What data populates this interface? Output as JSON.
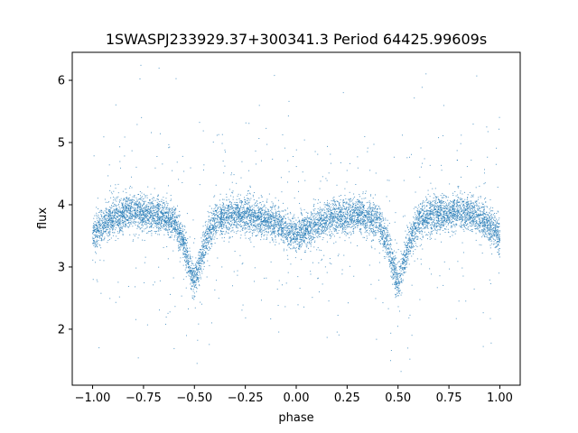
{
  "chart_data": {
    "type": "scatter",
    "title": "1SWASPJ233929.37+300341.3 Period 64425.99609s",
    "xlabel": "phase",
    "ylabel": "flux",
    "xlim": [
      -1.1,
      1.1
    ],
    "ylim": [
      1.1,
      6.45
    ],
    "xticks": [
      -1.0,
      -0.75,
      -0.5,
      -0.25,
      0.0,
      0.25,
      0.5,
      0.75,
      1.0
    ],
    "xtick_labels": [
      "−1.00",
      "−0.75",
      "−0.50",
      "−0.25",
      "0.00",
      "0.25",
      "0.50",
      "0.75",
      "1.00"
    ],
    "yticks": [
      2,
      3,
      4,
      5,
      6
    ],
    "ytick_labels": [
      "2",
      "3",
      "4",
      "5",
      "6"
    ],
    "grid": false,
    "legend": "none",
    "marker_color": "#1f77b4",
    "curve": {
      "phase": [
        -1.0,
        -0.9,
        -0.8,
        -0.7,
        -0.6,
        -0.55,
        -0.52,
        -0.5,
        -0.48,
        -0.45,
        -0.4,
        -0.3,
        -0.2,
        -0.1,
        -0.05,
        0.0,
        0.05,
        0.1,
        0.2,
        0.3,
        0.4,
        0.45,
        0.48,
        0.5,
        0.52,
        0.55,
        0.6,
        0.7,
        0.8,
        0.9,
        1.0
      ],
      "flux": [
        3.5,
        3.8,
        3.9,
        3.85,
        3.75,
        3.35,
        2.95,
        2.75,
        2.95,
        3.35,
        3.75,
        3.85,
        3.8,
        3.7,
        3.6,
        3.5,
        3.6,
        3.7,
        3.8,
        3.85,
        3.75,
        3.35,
        2.95,
        2.75,
        2.95,
        3.35,
        3.75,
        3.85,
        3.9,
        3.8,
        3.5
      ]
    },
    "scatter_sigma": 0.14,
    "outlier_fraction": 0.06,
    "n_points": 9000
  }
}
